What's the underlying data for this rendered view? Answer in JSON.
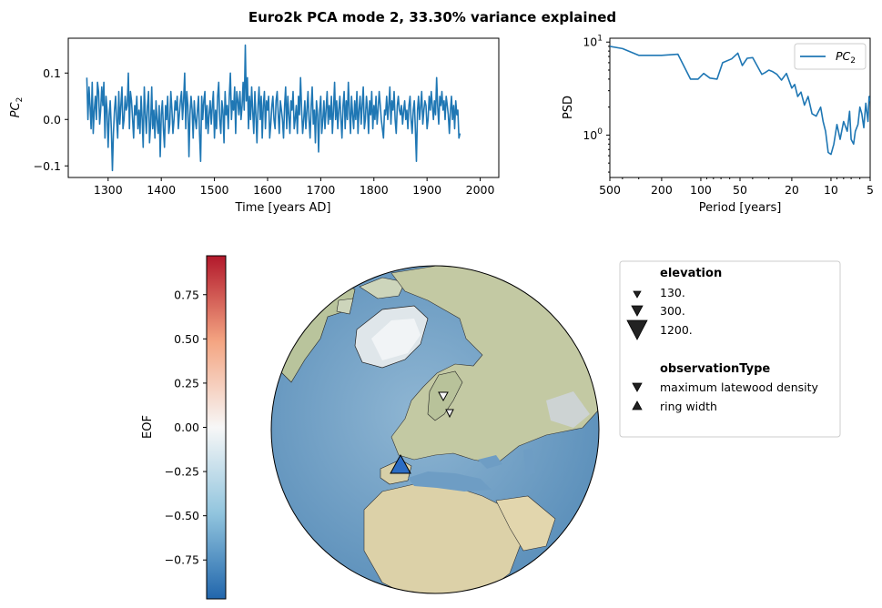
{
  "figure": {
    "suptitle": "Euro2k PCA mode 2, 33.30% variance explained"
  },
  "chart_data": [
    {
      "type": "line",
      "name": "timeseries",
      "xlabel": "Time [years AD]",
      "ylabel_base": "PC",
      "ylabel_sub": "2",
      "xlim": [
        1225,
        2035
      ],
      "ylim": [
        -0.125,
        0.175
      ],
      "xticks": [
        1300,
        1400,
        1500,
        1600,
        1700,
        1800,
        1900,
        2000
      ],
      "yticks": [
        -0.1,
        0.0,
        0.1
      ],
      "ytick_labels": [
        "−0.1",
        "0.0",
        "0.1"
      ],
      "color": "#1f77b4",
      "x_start": 1260,
      "x_step": 2,
      "y": [
        0.09,
        0.0,
        0.07,
        0.03,
        -0.02,
        0.08,
        -0.03,
        0.02,
        0.05,
        0.0,
        0.08,
        0.06,
        -0.01,
        0.02,
        0.07,
        0.03,
        0.08,
        -0.04,
        0.05,
        0.02,
        -0.06,
        0.01,
        0.04,
        -0.02,
        -0.11,
        -0.03,
        0.02,
        0.05,
        0.0,
        -0.04,
        0.06,
        -0.01,
        0.03,
        0.07,
        -0.02,
        0.0,
        0.05,
        0.02,
        0.03,
        0.1,
        -0.02,
        0.06,
        0.04,
        0.0,
        -0.04,
        0.03,
        0.01,
        0.05,
        -0.02,
        0.02,
        -0.03,
        0.05,
        0.0,
        -0.06,
        0.07,
        0.01,
        -0.03,
        0.03,
        0.06,
        -0.05,
        -0.01,
        0.07,
        -0.02,
        0.02,
        -0.04,
        0.04,
        0.0,
        -0.03,
        0.03,
        -0.08,
        0.01,
        0.04,
        -0.02,
        -0.06,
        0.03,
        0.0,
        0.05,
        -0.03,
        -0.01,
        0.06,
        0.02,
        -0.03,
        0.0,
        0.04,
        0.02,
        0.05,
        -0.02,
        0.01,
        0.04,
        0.06,
        0.0,
        0.04,
        0.1,
        -0.02,
        0.06,
        0.03,
        -0.08,
        0.01,
        0.05,
        0.02,
        -0.04,
        0.04,
        0.0,
        -0.02,
        0.02,
        0.05,
        -0.03,
        -0.09,
        0.05,
        0.0,
        0.04,
        0.06,
        -0.02,
        0.03,
        -0.03,
        0.01,
        0.04,
        -0.01,
        0.03,
        0.06,
        -0.04,
        0.02,
        -0.02,
        0.05,
        0.08,
        0.0,
        -0.03,
        0.04,
        0.02,
        -0.05,
        0.06,
        0.01,
        0.03,
        -0.02,
        0.05,
        0.1,
        0.0,
        0.04,
        0.02,
        0.07,
        -0.03,
        0.06,
        0.04,
        0.01,
        0.06,
        0.0,
        0.03,
        0.08,
        0.02,
        0.16,
        0.04,
        0.09,
        -0.02,
        0.05,
        0.0,
        0.07,
        0.02,
        -0.03,
        0.06,
        0.01,
        -0.05,
        0.03,
        0.07,
        0.0,
        0.05,
        -0.04,
        0.03,
        0.06,
        -0.02,
        0.04,
        0.02,
        0.05,
        -0.04,
        -0.01,
        0.03,
        0.05,
        0.0,
        -0.02,
        0.04,
        0.06,
        0.01,
        -0.03,
        0.04,
        0.02,
        0.0,
        -0.04,
        0.03,
        0.07,
        -0.02,
        0.05,
        0.01,
        -0.03,
        0.04,
        0.02,
        0.06,
        -0.02,
        0.0,
        0.03,
        -0.03,
        0.05,
        0.01,
        0.09,
        0.02,
        -0.03,
        0.0,
        0.04,
        -0.02,
        0.02,
        0.06,
        0.0,
        -0.04,
        0.03,
        0.07,
        -0.01,
        0.02,
        -0.05,
        0.04,
        0.01,
        -0.07,
        0.02,
        0.05,
        -0.03,
        0.0,
        0.04,
        -0.02,
        0.02,
        0.06,
        -0.01,
        0.03,
        0.0,
        0.05,
        -0.03,
        0.02,
        0.08,
        0.0,
        0.04,
        -0.02,
        0.02,
        0.05,
        0.0,
        -0.04,
        0.03,
        0.06,
        -0.02,
        0.04,
        0.0,
        0.08,
        0.02,
        -0.03,
        0.05,
        0.01,
        -0.02,
        0.04,
        0.0,
        0.06,
        -0.03,
        0.02,
        0.05,
        -0.01,
        0.03,
        0.07,
        -0.02,
        0.0,
        0.05,
        0.02,
        -0.03,
        0.04,
        0.01,
        0.06,
        -0.02,
        0.03,
        0.0,
        0.05,
        -0.01,
        0.02,
        0.06,
        0.03,
        0.0,
        -0.02,
        -0.04,
        0.02,
        0.01,
        0.05,
        0.0,
        0.03,
        0.07,
        -0.01,
        0.04,
        0.02,
        0.06,
        0.0,
        -0.03,
        0.03,
        0.05,
        0.02,
        0.01,
        0.03,
        -0.01,
        0.02,
        0.04,
        0.0,
        0.02,
        -0.02,
        0.03,
        0.05,
        0.0,
        -0.03,
        0.02,
        0.04,
        -0.02,
        -0.09,
        0.02,
        0.05,
        0.0,
        0.03,
        0.06,
        -0.01,
        0.02,
        0.04,
        0.03,
        -0.02,
        0.0,
        0.05,
        0.02,
        0.06,
        0.03,
        0.0,
        0.04,
        0.01,
        0.09,
        0.03,
        -0.01,
        0.05,
        0.03,
        0.06,
        0.02,
        0.04,
        0.0,
        0.05,
        0.03,
        0.01,
        -0.03,
        0.02,
        0.05,
        0.0,
        0.03,
        -0.02,
        0.04,
        0.01,
        0.02,
        -0.04,
        -0.03
      ]
    },
    {
      "type": "line",
      "name": "spectrum",
      "xlabel": "Period [years]",
      "ylabel": "PSD",
      "xscale": "log-reversed",
      "yscale": "log",
      "xlim": [
        500,
        5
      ],
      "ylim": [
        0.35,
        11
      ],
      "xticks": [
        500,
        200,
        100,
        50,
        20,
        10,
        5
      ],
      "xtick_labels": [
        "500",
        "200",
        "100",
        "50",
        "20",
        "10",
        "5"
      ],
      "yticks": [
        1,
        10
      ],
      "ytick_base": "10",
      "ytick_exps": [
        "0",
        "1"
      ],
      "legend_base": "PC",
      "legend_sub": "2",
      "legend_loc": "upper right",
      "color": "#1f77b4",
      "points": [
        [
          500,
          9.0
        ],
        [
          400,
          8.5
        ],
        [
          300,
          7.2
        ],
        [
          200,
          7.2
        ],
        [
          150,
          7.4
        ],
        [
          120,
          4.0
        ],
        [
          105,
          4.0
        ],
        [
          95,
          4.6
        ],
        [
          85,
          4.1
        ],
        [
          75,
          4.0
        ],
        [
          68,
          6.0
        ],
        [
          58,
          6.6
        ],
        [
          52,
          7.6
        ],
        [
          48,
          5.6
        ],
        [
          44,
          6.7
        ],
        [
          40,
          6.8
        ],
        [
          37,
          5.6
        ],
        [
          34,
          4.5
        ],
        [
          32,
          4.7
        ],
        [
          30,
          5.0
        ],
        [
          28,
          4.8
        ],
        [
          26,
          4.5
        ],
        [
          24,
          3.9
        ],
        [
          22,
          4.6
        ],
        [
          20,
          3.2
        ],
        [
          19,
          3.5
        ],
        [
          18,
          2.6
        ],
        [
          17,
          2.9
        ],
        [
          16,
          2.1
        ],
        [
          15,
          2.6
        ],
        [
          14,
          1.7
        ],
        [
          13,
          1.6
        ],
        [
          12,
          2.0
        ],
        [
          11.5,
          1.4
        ],
        [
          11,
          1.1
        ],
        [
          10.5,
          0.65
        ],
        [
          10,
          0.62
        ],
        [
          9.5,
          0.8
        ],
        [
          9,
          1.3
        ],
        [
          8.5,
          0.9
        ],
        [
          8,
          1.4
        ],
        [
          7.5,
          1.1
        ],
        [
          7.2,
          1.8
        ],
        [
          7,
          0.9
        ],
        [
          6.7,
          0.8
        ],
        [
          6.5,
          1.1
        ],
        [
          6.2,
          1.3
        ],
        [
          6,
          2.0
        ],
        [
          5.8,
          1.7
        ],
        [
          5.6,
          1.2
        ],
        [
          5.4,
          2.2
        ],
        [
          5.2,
          1.4
        ],
        [
          5.1,
          2.6
        ],
        [
          5,
          2.3
        ]
      ]
    },
    {
      "type": "colorbar",
      "name": "eof-colorbar",
      "label": "EOF",
      "range": [
        -0.97,
        0.97
      ],
      "ticks": [
        0.75,
        0.5,
        0.25,
        0.0,
        -0.25,
        -0.5,
        -0.75
      ],
      "tick_labels": [
        "0.75",
        "0.50",
        "0.25",
        "0.00",
        "−0.25",
        "−0.50",
        "−0.75"
      ],
      "colors": [
        "#2166ac",
        "#f7f7f7",
        "#b2182b"
      ]
    }
  ],
  "map_legend": {
    "elevation_title": "elevation",
    "elevation_items": [
      "130.",
      "300.",
      "1200."
    ],
    "obs_title": "observationType",
    "obs_items": [
      "maximum latewood density",
      "ring width"
    ]
  }
}
